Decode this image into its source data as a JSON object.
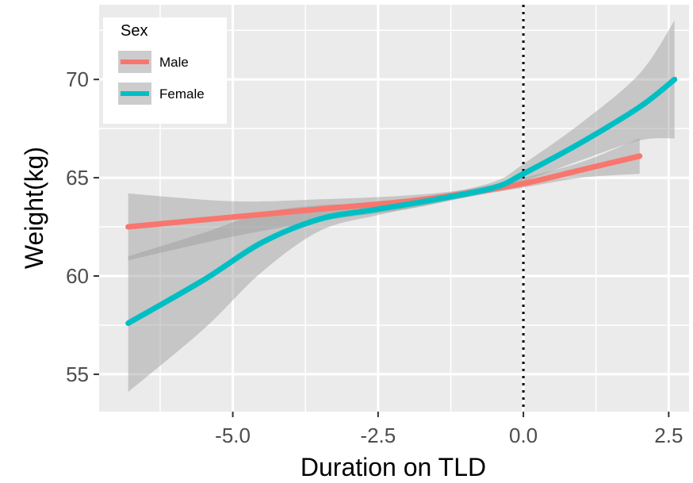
{
  "chart_data": {
    "type": "line",
    "xlabel": "Duration on TLD",
    "ylabel": "Weight(kg)",
    "xlim": [
      -7.3,
      2.85
    ],
    "ylim": [
      53.1,
      73.8
    ],
    "x_ticks": [
      -5.0,
      -2.5,
      0.0,
      2.5
    ],
    "x_tick_labels": [
      "-5.0",
      "-2.5",
      "0.0",
      "2.5"
    ],
    "y_ticks": [
      55,
      60,
      65,
      70
    ],
    "y_tick_labels": [
      "55",
      "60",
      "65",
      "70"
    ],
    "grid": true,
    "reference_line": {
      "x": 0.0,
      "style": "dotted",
      "color": "#000000"
    },
    "legend": {
      "title": "Sex",
      "position": "top-left"
    },
    "series": [
      {
        "name": "Male",
        "color": "#F8766D",
        "x": [
          -6.8,
          -5,
          -3.5,
          -2,
          -1,
          0,
          1,
          2
        ],
        "y": [
          62.5,
          63.0,
          63.4,
          63.8,
          64.2,
          64.7,
          65.4,
          66.1
        ],
        "lower": [
          60.8,
          62.0,
          62.8,
          63.4,
          64.0,
          64.5,
          65.0,
          65.2
        ],
        "upper": [
          64.2,
          63.8,
          63.9,
          64.1,
          64.4,
          65.0,
          65.8,
          67.0
        ]
      },
      {
        "name": "Female",
        "color": "#00BFC4",
        "x": [
          -6.8,
          -5.5,
          -4.5,
          -3.5,
          -2.5,
          -1.5,
          -0.5,
          0,
          1,
          2,
          2.6
        ],
        "y": [
          57.6,
          59.8,
          61.7,
          62.9,
          63.4,
          63.9,
          64.5,
          65.2,
          66.8,
          68.6,
          70.0
        ],
        "lower": [
          54.1,
          57.3,
          60.2,
          62.3,
          63.1,
          63.7,
          64.3,
          64.8,
          65.9,
          66.9,
          67.0
        ],
        "upper": [
          61.0,
          62.2,
          63.2,
          63.6,
          63.7,
          64.1,
          64.8,
          65.7,
          67.8,
          70.3,
          73.0
        ]
      }
    ]
  }
}
